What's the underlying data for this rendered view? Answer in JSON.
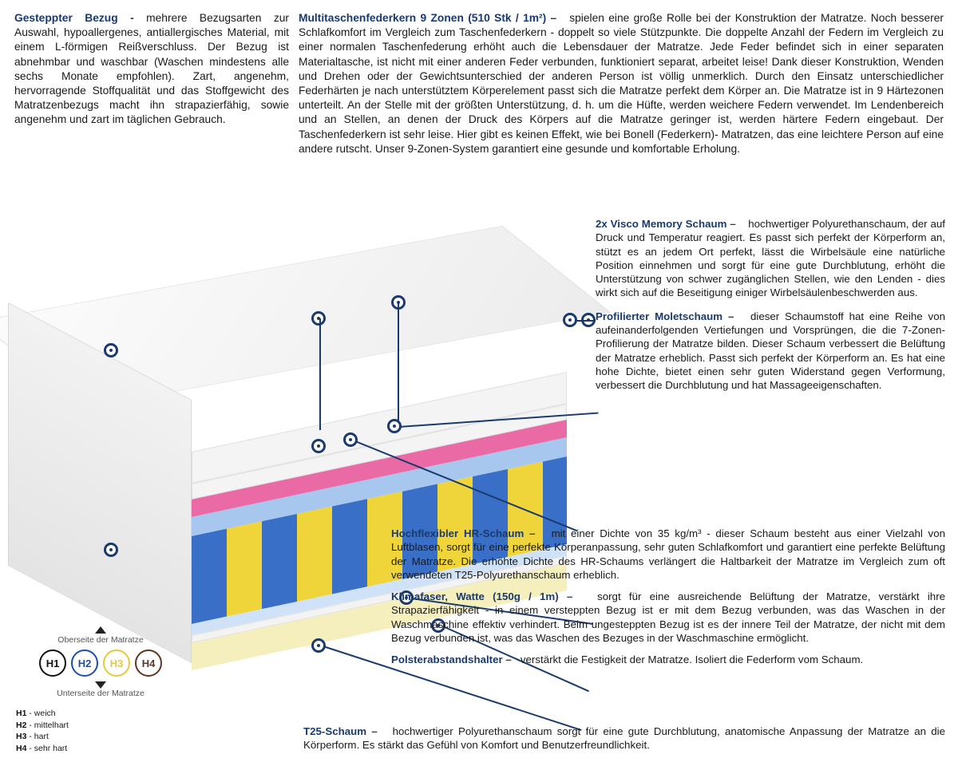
{
  "top": {
    "left": {
      "title": "Gesteppter Bezug - ",
      "body": "mehrere Bezugsarten zur Auswahl, hypoallergenes, antiallergisches Material, mit einem L-förmigen Reißverschluss. Der Bezug ist abnehmbar und waschbar (Waschen mindestens alle sechs Monate empfohlen). Zart, angenehm, hervorragende Stoffqualität und das Stoffgewicht des Matratzenbezugs macht ihn strapazierfähig, sowie angenehm und zart im täglichen Gebrauch."
    },
    "right": {
      "title": "Multitaschenfederkern 9 Zonen (510 Stk / 1m²) –",
      "body": "spielen eine große Rolle bei der Konstruktion der Matratze. Noch besserer Schlafkomfort im Vergleich zum Taschenfederkern - doppelt so viele Stützpunkte. Die doppelte Anzahl der Federn im Vergleich zu einer normalen Taschenfederung erhöht auch die Lebensdauer der Matratze. Jede Feder befindet sich in einer separaten Materialtasche, ist nicht mit einer anderen Feder verbunden, funktioniert separat, arbeitet leise! Dank dieser Konstruktion, Wenden und Drehen oder der Gewichtsunterschied der anderen Person ist völlig unmerklich. Durch den Einsatz unterschiedlicher Federhärten je nach unterstütztem Körperelement passt sich die Matratze perfekt dem Körper an. Die Matratze ist in 9 Härtezonen unterteilt. An der Stelle mit der größten Unterstützung, d. h. um die Hüfte, werden weichere Federn verwendet. Im Lendenbereich und an Stellen, an denen der Druck des Körpers auf die Matratze geringer ist, werden härtere Federn eingebaut. Der Taschenfederkern ist sehr leise. Hier gibt es keinen Effekt, wie bei Bonell (Federkern)- Matratzen, das eine leichtere Person auf eine andere rutscht. Unser 9-Zonen-System garantiert eine gesunde und komfortable Erholung."
    }
  },
  "right": {
    "visco": {
      "title": "2x Visco Memory Schaum –",
      "body": "hochwertiger Polyurethanschaum, der auf Druck und Temperatur reagiert. Es passt sich perfekt der Körperform an, stützt es an jedem Ort perfekt, lässt die Wirbelsäule eine natürliche Position einnehmen und sorgt für eine gute Durchblutung, erhöht die Unterstützung von schwer zugänglichen Stellen, wie den Lenden - dies wirkt sich auf die Beseitigung einiger Wirbelsäulenbeschwerden aus."
    },
    "molet": {
      "title": "Profilierter Moletschaum –",
      "body": "dieser Schaumstoff hat eine Reihe von aufeinanderfolgenden Vertiefungen und Vorsprüngen, die die 7-Zonen-Profilierung der Matratze bilden. Dieser Schaum verbessert die Belüftung der Matratze erheblich. Passt sich perfekt der Körperform an. Es hat eine hohe Dichte, bietet einen sehr guten Widerstand gegen Verformung, verbessert die Durchblutung und hat Massageeigenschaften."
    }
  },
  "lower": {
    "hr": {
      "title": "Hochflexibler HR-Schaum –",
      "body": "mit einer Dichte von 35 kg/m³ - dieser Schaum besteht aus einer Vielzahl von Luftblasen, sorgt für eine perfekte Körperanpassung, sehr guten Schlafkomfort und garantiert eine perfekte Belüftung der Matratze. Die erhöhte Dichte des HR-Schaums verlängert die Haltbarkeit der Matratze im Vergleich zum oft verwendeten T25-Polyurethanschaum erheblich."
    },
    "klima": {
      "title": "Klimafaser, Watte (150g / 1m) –",
      "body": "sorgt für eine ausreichende Belüftung der Matratze, verstärkt ihre Strapazierfähigkeit - in einem versteppten Bezug ist er mit dem Bezug verbunden, was das Waschen in der Waschmaschine effektiv verhindert. Beim ungesteppten Bezug ist es der innere Teil der Matratze, der nicht mit dem Bezug verbunden ist, was das Waschen des Bezuges in der Waschmaschine ermöglicht."
    },
    "polster": {
      "title": "Polsterabstandshalter –",
      "body": "verstärkt die Festigkeit der Matratze. Isoliert die Federform vom Schaum."
    }
  },
  "bottom": {
    "t25": {
      "title": "T25-Schaum –",
      "body": "hochwertiger Polyurethanschaum sorgt für eine gute Durchblutung, anatomische Anpassung der Matratze an die Körperform. Es stärkt das Gefühl von Komfort und Benutzerfreundlichkeit."
    }
  },
  "hardness": {
    "top_label": "Oberseite der Matratze",
    "bottom_label": "Unterseite der Matratze",
    "circles": [
      {
        "label": "H1",
        "color": "#111111"
      },
      {
        "label": "H2",
        "color": "#1a4fb0"
      },
      {
        "label": "H3",
        "color": "#e5c93a"
      },
      {
        "label": "H4",
        "color": "#5a3828"
      }
    ],
    "legend": [
      {
        "key": "H1",
        "val": " - weich"
      },
      {
        "key": "H2",
        "val": " - mittelhart"
      },
      {
        "key": "H3",
        "val": " - hart"
      },
      {
        "key": "H4",
        "val": " - sehr hart"
      }
    ]
  }
}
